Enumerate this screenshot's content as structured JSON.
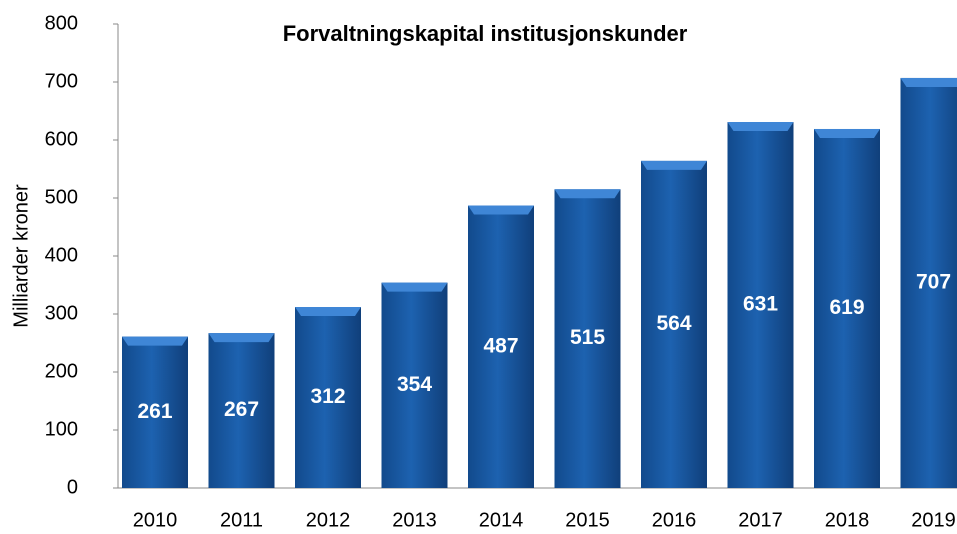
{
  "chart_data": {
    "type": "bar",
    "title": "Forvaltningskapital institusjonskunder",
    "y_label": "Milliarder kroner",
    "categories": [
      "2010",
      "2011",
      "2012",
      "2013",
      "2014",
      "2015",
      "2016",
      "2017",
      "2018",
      "2019"
    ],
    "values": [
      261,
      267,
      312,
      354,
      487,
      515,
      564,
      631,
      619,
      707
    ],
    "color": "#1a5aa6",
    "ylim": [
      0,
      800
    ],
    "yticks": [
      0,
      100,
      200,
      300,
      400,
      500,
      600,
      700,
      800
    ],
    "grid": false
  }
}
